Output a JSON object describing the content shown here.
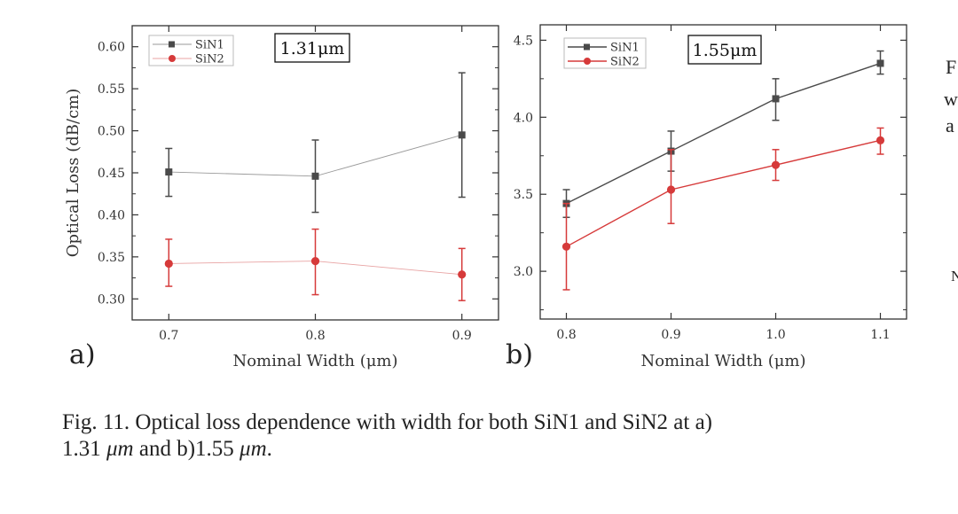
{
  "chart_data": [
    {
      "type": "line",
      "panel_label": "a)",
      "annotation": "1.31μm",
      "xlabel": "Nominal Width (μm)",
      "ylabel": "Optical Loss (dB/cm)",
      "x": [
        0.7,
        0.8,
        0.9
      ],
      "xticks": [
        "0.7",
        "0.8",
        "0.9"
      ],
      "xlim": [
        0.675,
        0.925
      ],
      "yticks": [
        "0.30",
        "0.35",
        "0.40",
        "0.45",
        "0.50",
        "0.55",
        "0.60"
      ],
      "ylim": [
        0.275,
        0.625
      ],
      "legend_position": "top-left",
      "series": [
        {
          "name": "SiN1",
          "marker": "square",
          "color": "#4a4a4a",
          "line_color": "#9a9a9a",
          "values": [
            0.451,
            0.446,
            0.495
          ],
          "err_low": [
            0.422,
            0.403,
            0.421
          ],
          "err_high": [
            0.479,
            0.489,
            0.569
          ]
        },
        {
          "name": "SiN2",
          "marker": "circle",
          "color": "#d63a3a",
          "line_color": "#e8a3a3",
          "values": [
            0.342,
            0.345,
            0.329
          ],
          "err_low": [
            0.315,
            0.305,
            0.298
          ],
          "err_high": [
            0.371,
            0.383,
            0.36
          ]
        }
      ]
    },
    {
      "type": "line",
      "panel_label": "b)",
      "annotation": "1.55μm",
      "xlabel": "Nominal Width (μm)",
      "ylabel": "",
      "x": [
        0.8,
        0.9,
        1.0,
        1.1
      ],
      "xticks": [
        "0.8",
        "0.9",
        "1.0",
        "1.1"
      ],
      "xlim": [
        0.775,
        1.125
      ],
      "yticks": [
        "3.0",
        "3.5",
        "4.0",
        "4.5"
      ],
      "ylim": [
        2.69,
        4.6
      ],
      "legend_position": "top-left",
      "series": [
        {
          "name": "SiN1",
          "marker": "square",
          "color": "#4a4a4a",
          "line_color": "#4a4a4a",
          "values": [
            3.44,
            3.78,
            4.12,
            4.35
          ],
          "err_low": [
            3.35,
            3.65,
            3.98,
            4.28
          ],
          "err_high": [
            3.53,
            3.91,
            4.25,
            4.43
          ]
        },
        {
          "name": "SiN2",
          "marker": "circle",
          "color": "#d63a3a",
          "line_color": "#d63a3a",
          "values": [
            3.16,
            3.53,
            3.69,
            3.85
          ],
          "err_low": [
            2.88,
            3.31,
            3.59,
            3.76
          ],
          "err_high": [
            3.44,
            3.79,
            3.79,
            3.93
          ]
        }
      ]
    }
  ],
  "side_text": [
    "F",
    "w",
    "a",
    "N"
  ],
  "caption": {
    "prefix": "Fig. 11.  Optical loss dependence with width for both SiN1 and SiN2 at a)",
    "line2_a": "1.31 ",
    "unit": "μm",
    "line2_b": " and b)1.55 ",
    "end": "."
  }
}
